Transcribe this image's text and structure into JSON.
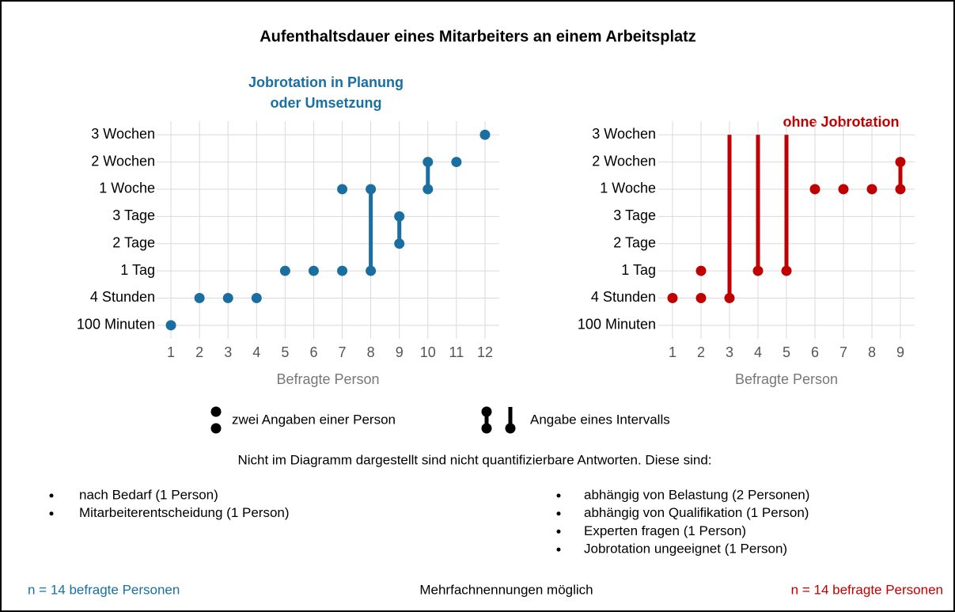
{
  "title": "Aufenthaltsdauer eines Mitarbeiters an einem Arbeitsplatz",
  "chart_data": [
    {
      "type": "dot",
      "title": [
        "Jobrotation in Planung",
        "oder Umsetzung"
      ],
      "color": "#1a6fa0",
      "xlabel": "Befragte Person",
      "xlim": [
        0.5,
        12.5
      ],
      "xticks": [
        1,
        2,
        3,
        4,
        5,
        6,
        7,
        8,
        9,
        10,
        11,
        12
      ],
      "ylim": [
        -0.5,
        7.5
      ],
      "yticks": [
        {
          "value": 0,
          "label": "100 Minuten"
        },
        {
          "value": 1,
          "label": "4 Stunden"
        },
        {
          "value": 2,
          "label": "1 Tag"
        },
        {
          "value": 3,
          "label": "2 Tage"
        },
        {
          "value": 4,
          "label": "3 Tage"
        },
        {
          "value": 5,
          "label": "1 Woche"
        },
        {
          "value": 6,
          "label": "2 Wochen"
        },
        {
          "value": 7,
          "label": "3 Wochen"
        }
      ],
      "grid": true,
      "points": [
        {
          "x": 1,
          "y": 0
        },
        {
          "x": 2,
          "y": 1
        },
        {
          "x": 3,
          "y": 1
        },
        {
          "x": 4,
          "y": 1
        },
        {
          "x": 5,
          "y": 2
        },
        {
          "x": 6,
          "y": 2
        },
        {
          "x": 7,
          "y": 2
        },
        {
          "x": 7,
          "y": 5
        },
        {
          "x": 11,
          "y": 6
        },
        {
          "x": 12,
          "y": 7
        }
      ],
      "intervals": [
        {
          "x": 8,
          "low": 2,
          "high": 5
        },
        {
          "x": 9,
          "low": 3,
          "high": 4
        },
        {
          "x": 10,
          "low": 5,
          "high": 6
        }
      ],
      "open_intervals": []
    },
    {
      "type": "dot",
      "title": [
        "ohne Jobrotation"
      ],
      "color": "#c00000",
      "xlabel": "Befragte Person",
      "xlim": [
        0.5,
        9.5
      ],
      "xticks": [
        1,
        2,
        3,
        4,
        5,
        6,
        7,
        8,
        9
      ],
      "ylim": [
        -0.5,
        7.5
      ],
      "yticks": [
        {
          "value": 0,
          "label": "100 Minuten"
        },
        {
          "value": 1,
          "label": "4 Stunden"
        },
        {
          "value": 2,
          "label": "1 Tag"
        },
        {
          "value": 3,
          "label": "2 Tage"
        },
        {
          "value": 4,
          "label": "3 Tage"
        },
        {
          "value": 5,
          "label": "1 Woche"
        },
        {
          "value": 6,
          "label": "2 Wochen"
        },
        {
          "value": 7,
          "label": "3 Wochen"
        }
      ],
      "grid": true,
      "points": [
        {
          "x": 1,
          "y": 1
        },
        {
          "x": 2,
          "y": 1
        },
        {
          "x": 2,
          "y": 2
        },
        {
          "x": 6,
          "y": 5
        },
        {
          "x": 7,
          "y": 5
        },
        {
          "x": 8,
          "y": 5
        }
      ],
      "intervals": [
        {
          "x": 9,
          "low": 5,
          "high": 6
        }
      ],
      "open_intervals": [
        {
          "x": 3,
          "low": 1,
          "high": 7
        },
        {
          "x": 4,
          "low": 2,
          "high": 7
        },
        {
          "x": 5,
          "low": 2,
          "high": 7
        }
      ]
    }
  ],
  "legend": [
    "zwei Angaben einer Person",
    "Angabe eines Intervalls"
  ],
  "note": "Nicht im Diagramm dargestellt sind nicht quantifizierbare Antworten. Diese sind:",
  "answers_left": [
    "nach Bedarf (1 Person)",
    "Mitarbeiterentscheidung (1 Person)"
  ],
  "answers_right": [
    "abhängig von Belastung (2 Personen)",
    "abhängig von Qualifikation (1 Person)",
    "Experten fragen (1 Person)",
    "Jobrotation ungeeignet (1 Person)"
  ],
  "footer": {
    "left": "n = 14 befragte Personen",
    "center": "Mehrfachnennungen möglich",
    "right": "n = 14 befragte Personen"
  }
}
